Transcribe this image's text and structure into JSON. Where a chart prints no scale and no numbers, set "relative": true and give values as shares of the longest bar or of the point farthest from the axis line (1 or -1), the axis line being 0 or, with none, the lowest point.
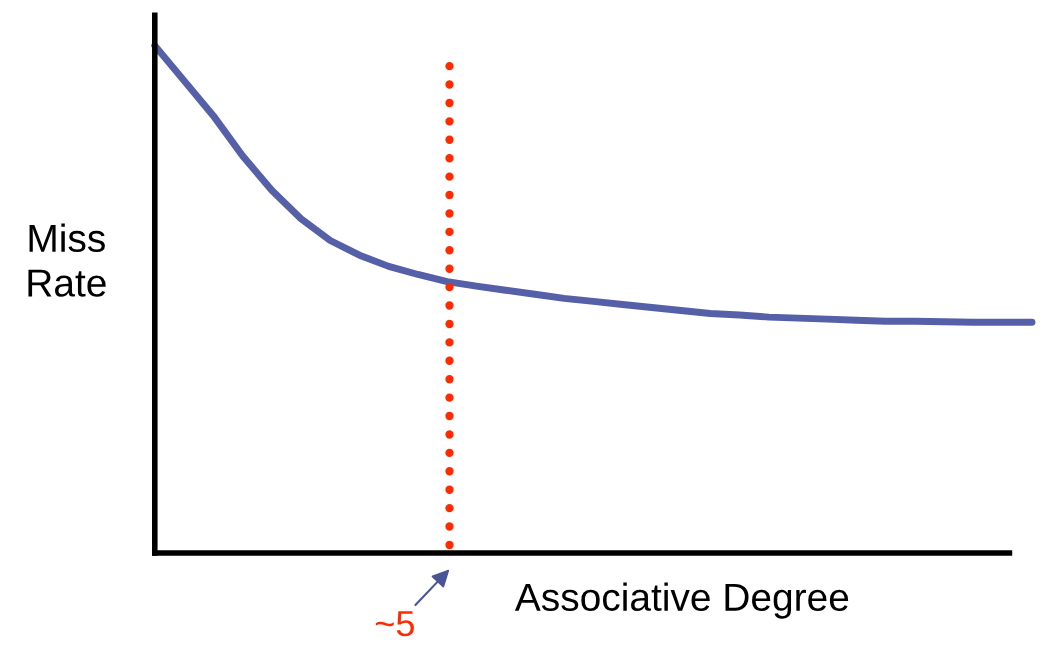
{
  "chart_data": {
    "type": "line",
    "relative": true,
    "ylabel": "Miss\nRate",
    "xlabel": "Associative Degree",
    "categories": [
      null,
      null,
      null,
      null,
      null,
      null,
      null,
      null,
      null,
      null,
      null,
      null,
      null,
      null,
      null,
      null,
      null,
      null,
      null,
      null,
      null,
      null,
      null,
      null,
      null,
      null,
      null,
      null,
      null,
      null,
      null
    ],
    "series": [
      {
        "color": "#5560a8",
        "values": [
          1.0,
          0.931,
          0.862,
          0.783,
          0.715,
          0.659,
          0.616,
          0.587,
          0.565,
          0.549,
          0.535,
          0.526,
          0.518,
          0.51,
          0.502,
          0.496,
          0.49,
          0.484,
          0.478,
          0.472,
          0.469,
          0.465,
          0.463,
          0.461,
          0.459,
          0.457,
          0.457,
          0.456,
          0.455,
          0.455,
          0.455
        ]
      }
    ],
    "annotations": [
      "~5"
    ],
    "marker": "none",
    "line_style": "solid",
    "grid": false,
    "legend": false
  }
}
